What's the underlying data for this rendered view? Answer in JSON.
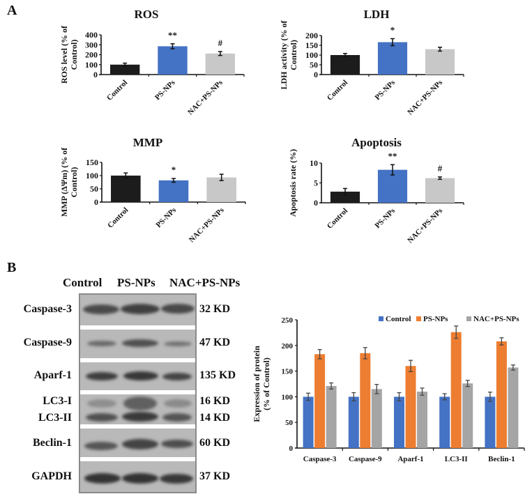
{
  "panel_a": {
    "letter": "A"
  },
  "panel_b": {
    "letter": "B"
  },
  "colors": {
    "control_black": "#1c1c1c",
    "ps_nps_blue": "#4472c4",
    "nac_gray_light": "#c8c8c8",
    "control_blue": "#4472c4",
    "ps_nps_orange": "#ed7d31",
    "nac_gray": "#a5a5a5"
  },
  "chart_data": [
    {
      "type": "bar",
      "title": "ROS",
      "ylabel": "ROS level (% of Control)",
      "ylabel_lines": [
        "ROS level (% of",
        "Control)"
      ],
      "categories": [
        "Control",
        "PS-NPs",
        "NAC+PS-NPs"
      ],
      "values": [
        100,
        285,
        212
      ],
      "errors": [
        15,
        25,
        20
      ],
      "significance": [
        "",
        "**",
        "#"
      ],
      "yticks": [
        0,
        100,
        200,
        300,
        400
      ],
      "ylim": [
        0,
        400
      ]
    },
    {
      "type": "bar",
      "title": "LDH",
      "ylabel": "LDH activity (% of Control)",
      "ylabel_lines": [
        "LDH activity (% of",
        "Control)"
      ],
      "categories": [
        "Control",
        "PS-NPs",
        "NAC+PS-NPs"
      ],
      "values": [
        100,
        166,
        130
      ],
      "errors": [
        8,
        18,
        10
      ],
      "significance": [
        "",
        "*",
        ""
      ],
      "yticks": [
        0,
        50,
        100,
        150,
        200
      ],
      "ylim": [
        0,
        200
      ]
    },
    {
      "type": "bar",
      "title": "MMP",
      "ylabel": "MMP (ΔΨm) (% of Control)",
      "ylabel_lines": [
        "MMP (ΔΨm) (% of",
        "Control)"
      ],
      "categories": [
        "Control",
        "PS-NPs",
        "NAC+PS-NPs"
      ],
      "values": [
        100,
        82,
        93
      ],
      "errors": [
        10,
        7,
        12
      ],
      "significance": [
        "",
        "*",
        ""
      ],
      "yticks": [
        0,
        50,
        100,
        150
      ],
      "ylim": [
        0,
        150
      ]
    },
    {
      "type": "bar",
      "title": "Apoptosis",
      "ylabel": "Apoptosis rate (%)",
      "ylabel_lines": [
        "Apoptosis rate (%)"
      ],
      "categories": [
        "Control",
        "PS-NPs",
        "NAC+PS-NPs"
      ],
      "values": [
        2.8,
        8.3,
        6.2
      ],
      "errors": [
        0.8,
        1.3,
        0.3
      ],
      "significance": [
        "",
        "**",
        "#"
      ],
      "yticks": [
        0,
        5,
        10
      ],
      "ylim": [
        0,
        10
      ]
    },
    {
      "type": "bar",
      "title": "",
      "ylabel": "Expression of protein (% of Control)",
      "ylabel_lines": [
        "Expression of protein",
        "(% of Control)"
      ],
      "categories": [
        "Caspase-3",
        "Caspase-9",
        "Aparf-1",
        "LC3-II",
        "Beclin-1"
      ],
      "series": [
        {
          "name": "Control",
          "values": [
            100,
            100,
            100,
            100,
            100
          ],
          "errors": [
            7,
            8,
            8,
            6,
            9
          ]
        },
        {
          "name": "PS-NPs",
          "values": [
            183,
            185,
            160,
            226,
            208
          ],
          "errors": [
            9,
            11,
            11,
            12,
            7
          ]
        },
        {
          "name": "NAC+PS-NPs",
          "values": [
            121,
            115,
            110,
            126,
            157
          ],
          "errors": [
            6,
            9,
            7,
            6,
            5
          ]
        }
      ],
      "yticks": [
        0,
        50,
        100,
        150,
        200,
        250
      ],
      "ylim": [
        0,
        250
      ],
      "legend_position": "top-right"
    }
  ],
  "western_blot": {
    "columns": [
      "Control",
      "PS-NPs",
      "NAC+PS-NPs"
    ],
    "rows": [
      {
        "protein": "Caspase-3",
        "size": "32 KD"
      },
      {
        "protein": "Caspase-9",
        "size": "47 KD"
      },
      {
        "protein": "Aparf-1",
        "size": "135 KD"
      },
      {
        "protein": "LC3-I",
        "size": "16 KD"
      },
      {
        "protein": "LC3-II",
        "size": "14 KD"
      },
      {
        "protein": "Beclin-1",
        "size": "60 KD"
      },
      {
        "protein": "GAPDH",
        "size": "37 KD"
      }
    ]
  }
}
